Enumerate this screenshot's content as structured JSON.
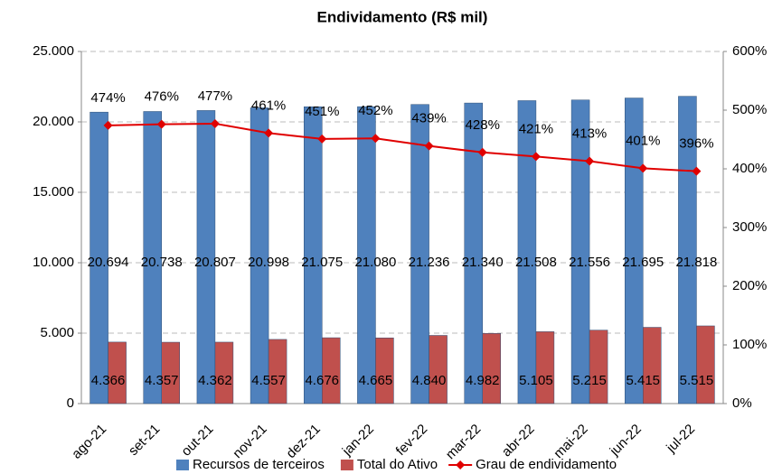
{
  "chart_data": {
    "type": "bar-line",
    "title": "Endividamento  (R$ mil)",
    "categories": [
      "ago-21",
      "set-21",
      "out-21",
      "nov-21",
      "dez-21",
      "jan-22",
      "fev-22",
      "mar-22",
      "abr-22",
      "mai-22",
      "jun-22",
      "jul-22"
    ],
    "series": [
      {
        "name": "Recursos de terceiros",
        "type": "bar",
        "color": "#4f81bd",
        "values": [
          20694,
          20738,
          20807,
          20998,
          21075,
          21080,
          21236,
          21340,
          21508,
          21556,
          21695,
          21818
        ],
        "value_labels": [
          "20.694",
          "20.738",
          "20.807",
          "20.998",
          "21.075",
          "21.080",
          "21.236",
          "21.340",
          "21.508",
          "21.556",
          "21.695",
          "21.818"
        ]
      },
      {
        "name": "Total do Ativo",
        "type": "bar",
        "color": "#c0504d",
        "values": [
          4366,
          4357,
          4362,
          4557,
          4676,
          4665,
          4840,
          4982,
          5105,
          5215,
          5415,
          5515
        ],
        "value_labels": [
          "4.366",
          "4.357",
          "4.362",
          "4.557",
          "4.676",
          "4.665",
          "4.840",
          "4.982",
          "5.105",
          "5.215",
          "5.415",
          "5.515"
        ]
      },
      {
        "name": "Grau de endividamento",
        "type": "line",
        "axis": "y2",
        "color": "#e00000",
        "values": [
          474,
          476,
          477,
          461,
          451,
          452,
          439,
          428,
          421,
          413,
          401,
          396
        ],
        "value_labels": [
          "474%",
          "476%",
          "477%",
          "461%",
          "451%",
          "452%",
          "439%",
          "428%",
          "421%",
          "413%",
          "401%",
          "396%"
        ]
      }
    ],
    "ylim": [
      0,
      25000
    ],
    "yticks": [
      0,
      {
        "value": 5000,
        "label": "5.000"
      },
      {
        "value": 10000,
        "label": "10.000"
      },
      {
        "value": 15000,
        "label": "15.000"
      },
      {
        "value": 20000,
        "label": "20.000"
      },
      {
        "value": 25000,
        "label": "25.000"
      }
    ],
    "y2lim": [
      0,
      600
    ],
    "y2ticks": [
      {
        "value": 0,
        "label": "0%"
      },
      {
        "value": 100,
        "label": "100%"
      },
      {
        "value": 200,
        "label": "200%"
      },
      {
        "value": 300,
        "label": "300%"
      },
      {
        "value": 400,
        "label": "400%"
      },
      {
        "value": 500,
        "label": "500%"
      },
      {
        "value": 600,
        "label": "600%"
      }
    ],
    "grid": true,
    "legend": "bottom"
  }
}
